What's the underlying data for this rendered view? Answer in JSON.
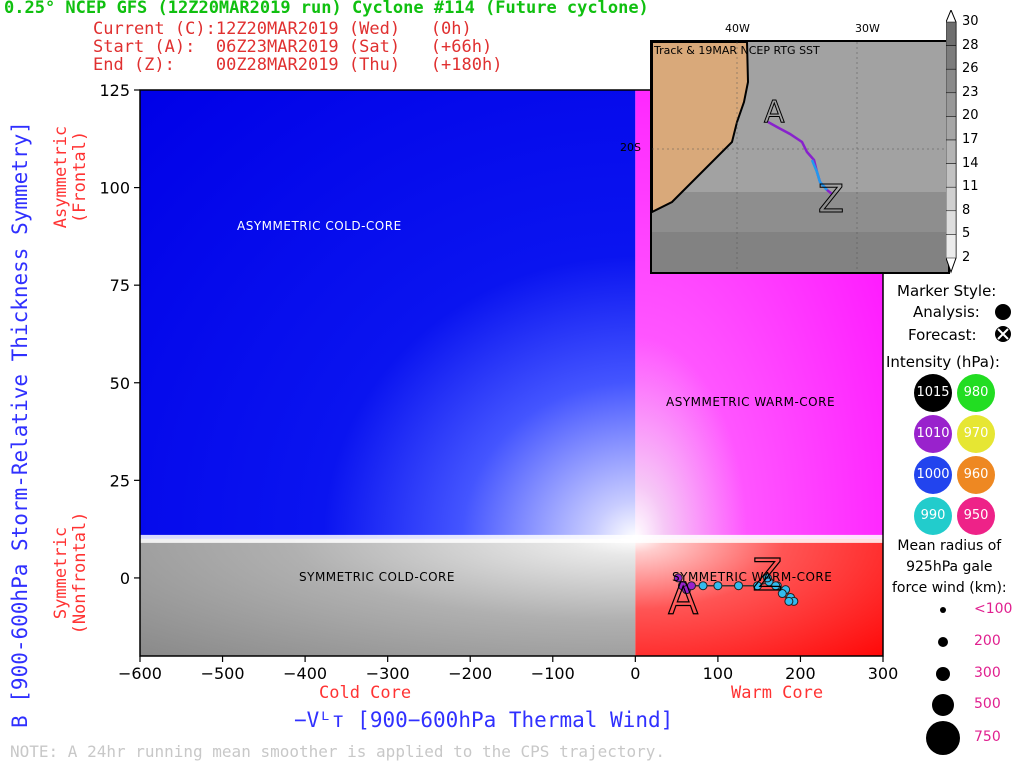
{
  "header": {
    "title": "0.25° NCEP GFS (12Z20MAR2019 run) Cyclone #114 (Future cyclone)",
    "rows": [
      {
        "label": "Current (C):",
        "time": "12Z20MAR2019 (Wed)",
        "offset": "(0h)"
      },
      {
        "label": "Start (A):",
        "time": "06Z23MAR2019 (Sat)",
        "offset": "(+66h)"
      },
      {
        "label": "End (Z):",
        "time": "00Z28MAR2019 (Thu)",
        "offset": "(+180h)"
      }
    ]
  },
  "axes": {
    "ytitle": "B [900-600hPa Storm-Relative Thickness Symmetry]",
    "ysub_top": [
      "Asymmetric",
      "(Frontal)"
    ],
    "ysub_bottom": [
      "Symmetric",
      "(Nonfrontal)"
    ],
    "xtitle": "−Vᴸᴛ [900−600hPa Thermal Wind]",
    "xsub_left": "Cold Core",
    "xsub_right": "Warm Core"
  },
  "regions": {
    "tl": "ASYMMETRIC COLD-CORE",
    "tr": "ASYMMETRIC WARM-CORE",
    "bl": "SYMMETRIC COLD-CORE",
    "br": "SYMMETRIC WARM-CORE"
  },
  "inset": {
    "title": "Track & 19MAR NCEP RTG SST",
    "lon_labels": [
      "40W",
      "30W"
    ],
    "lat_label": "20S",
    "marker_start": "A",
    "marker_end": "Z"
  },
  "colorbar": {
    "labels": [
      "30",
      "28",
      "26",
      "23",
      "20",
      "17",
      "14",
      "11",
      "8",
      "5",
      "2"
    ]
  },
  "legend": {
    "marker_style": "Marker Style:",
    "analysis": "Analysis:",
    "forecast": "Forecast:",
    "intensity_title": "Intensity (hPa):",
    "intensity": [
      {
        "value": "1015",
        "color": "#000000",
        "text_color": "#ffffff"
      },
      {
        "value": "980",
        "color": "#22dd22",
        "text_color": "#ffffff"
      },
      {
        "value": "1010",
        "color": "#9922cc",
        "text_color": "#ffffff"
      },
      {
        "value": "970",
        "color": "#e6e633",
        "text_color": "#ffffff"
      },
      {
        "value": "1000",
        "color": "#2244ee",
        "text_color": "#ffffff"
      },
      {
        "value": "960",
        "color": "#ee8822",
        "text_color": "#ffffff"
      },
      {
        "value": "990",
        "color": "#22cccc",
        "text_color": "#ffffff"
      },
      {
        "value": "950",
        "color": "#ee2288",
        "text_color": "#ffffff"
      }
    ],
    "radius_title": [
      "Mean radius of",
      "925hPa gale",
      "force wind (km):"
    ],
    "radius": [
      "<100",
      "200",
      "300",
      "500",
      "750"
    ]
  },
  "note": "NOTE:  A 24hr running mean smoother is applied to the CPS trajectory.",
  "chart_data": {
    "type": "scatter",
    "xlim": [
      -600,
      300
    ],
    "ylim": [
      -20,
      125
    ],
    "xticks": [
      -600,
      -500,
      -400,
      -300,
      -200,
      -100,
      0,
      100,
      200,
      300
    ],
    "yticks": [
      0,
      25,
      50,
      75,
      100,
      125
    ],
    "series": [
      {
        "x": [
          52,
          57,
          62,
          68,
          82,
          100,
          125,
          148,
          162,
          172,
          182,
          188,
          192,
          186,
          178,
          170,
          160
        ],
        "y": [
          0,
          -2,
          -3,
          -2,
          -2,
          -2,
          -2,
          -2,
          -1,
          -2,
          -3,
          -5,
          -6,
          -6,
          -4,
          -2,
          0
        ]
      }
    ],
    "marker_A": {
      "x": 58,
      "y": -2
    },
    "marker_Z": {
      "x": 160,
      "y": 0
    }
  }
}
